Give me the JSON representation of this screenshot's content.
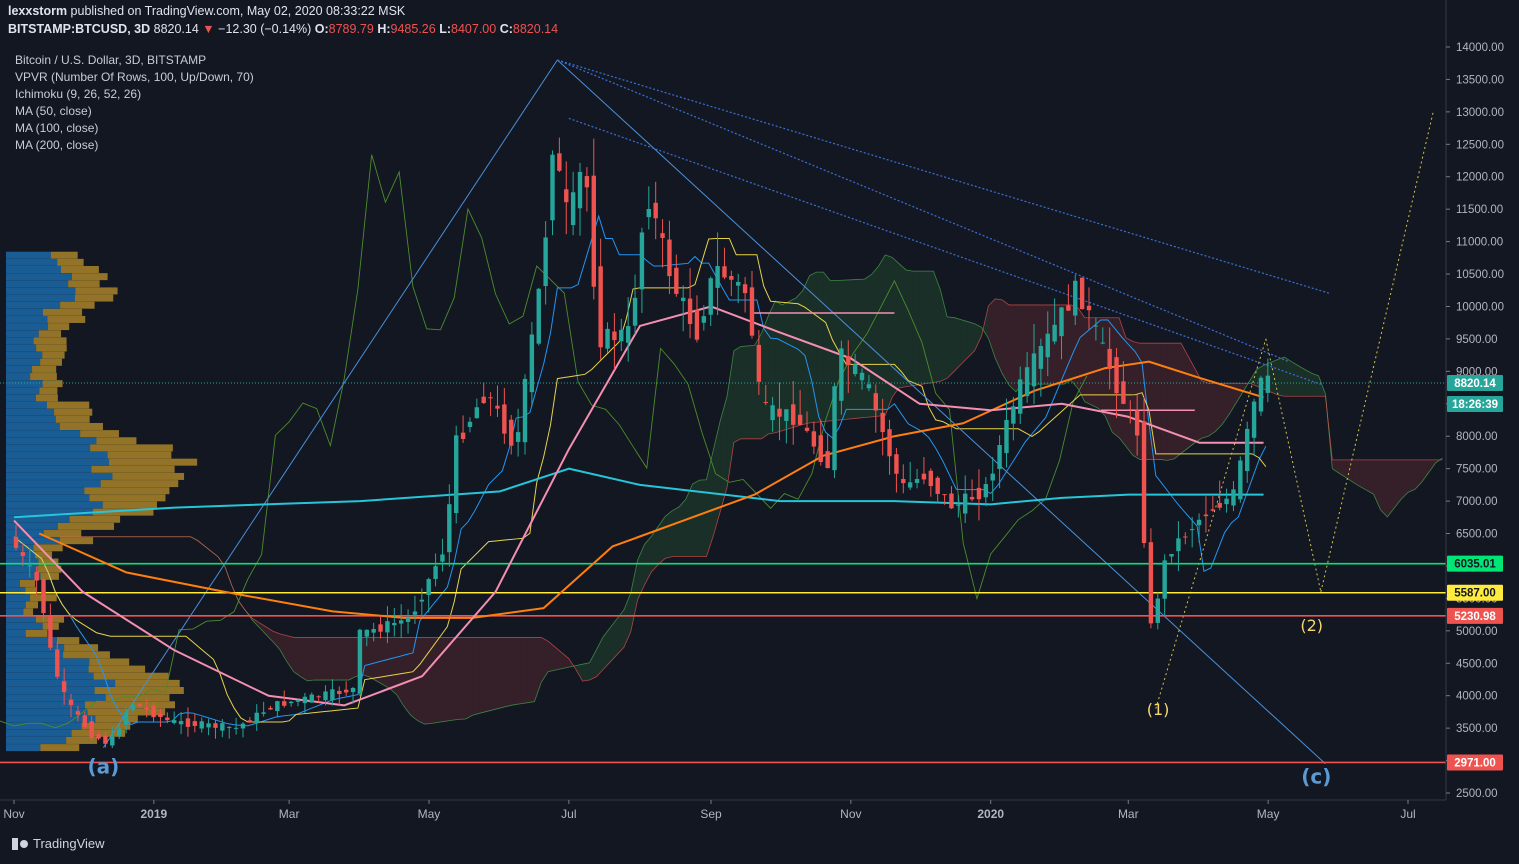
{
  "header": {
    "author": "lexxstorm",
    "published_text": "published on TradingView.com, May 02, 2020 08:33:22 MSK",
    "symbol": "BITSTAMP:BTCUSD, 3D",
    "last": "8820.14",
    "change": "−12.30 (−0.14%)",
    "open_label": "O:",
    "open": "8789.79",
    "high_label": "H:",
    "high": "9485.26",
    "low_label": "L:",
    "low": "8407.00",
    "close_label": "C:",
    "close": "8820.14"
  },
  "indicators": [
    "Bitcoin / U.S. Dollar, 3D, BITSTAMP",
    "VPVR (Number Of Rows, 100, Up/Down, 70)",
    "Ichimoku (9, 26, 52, 26)",
    "MA (50, close)",
    "MA (100, close)",
    "MA (200, close)"
  ],
  "brand": "TradingView",
  "colors": {
    "background": "#131722",
    "axis_text": "#b2b5be",
    "up": "#26a69a",
    "down": "#ef5350",
    "ma50": "#f48fb1",
    "ma100": "#ff7f0e",
    "ma200": "#26c6da",
    "support_green": "#00e676",
    "support_yellow": "#ffeb3b",
    "support_red": "#ef5350",
    "wave_label": "#5b9bd5",
    "wave_label_yellow": "#f5d76e"
  },
  "chart_data": {
    "type": "candlestick",
    "title": "Bitcoin / U.S. Dollar, 3D, BITSTAMP",
    "ylim": [
      2400,
      14100
    ],
    "y_ticks": [
      2500,
      3000,
      3500,
      4000,
      4500,
      5000,
      5500,
      6000,
      6500,
      7000,
      7500,
      8000,
      8500,
      9000,
      9500,
      10000,
      10500,
      11000,
      11500,
      12000,
      12500,
      13000,
      13500,
      14000
    ],
    "x_axis_labels": [
      "Nov",
      "2019",
      "Mar",
      "May",
      "Jul",
      "Sep",
      "Nov",
      "2020",
      "Mar",
      "May",
      "Jul"
    ],
    "x_axis_dates": [
      "2018-11-01",
      "2019-01-01",
      "2019-03-01",
      "2019-05-01",
      "2019-07-01",
      "2019-09-01",
      "2019-11-01",
      "2020-01-01",
      "2020-03-01",
      "2020-05-01",
      "2020-07-01"
    ],
    "price_path": [
      [
        "2018-11-01",
        6450
      ],
      [
        "2018-11-14",
        5700
      ],
      [
        "2018-11-20",
        4500
      ],
      [
        "2018-11-26",
        3900
      ],
      [
        "2018-12-07",
        3400
      ],
      [
        "2018-12-15",
        3250
      ],
      [
        "2018-12-24",
        3900
      ],
      [
        "2019-01-10",
        3600
      ],
      [
        "2019-02-08",
        3500
      ],
      [
        "2019-02-24",
        3850
      ],
      [
        "2019-03-31",
        4100
      ],
      [
        "2019-04-03",
        4950
      ],
      [
        "2019-04-25",
        5200
      ],
      [
        "2019-05-10",
        6300
      ],
      [
        "2019-05-15",
        7900
      ],
      [
        "2019-05-28",
        8700
      ],
      [
        "2019-06-10",
        7800
      ],
      [
        "2019-06-22",
        10700
      ],
      [
        "2019-06-26",
        12500
      ],
      [
        "2019-07-03",
        11300
      ],
      [
        "2019-07-10",
        12300
      ],
      [
        "2019-07-16",
        9500
      ],
      [
        "2019-07-30",
        9600
      ],
      [
        "2019-08-06",
        11800
      ],
      [
        "2019-08-18",
        10300
      ],
      [
        "2019-08-28",
        9600
      ],
      [
        "2019-09-05",
        10600
      ],
      [
        "2019-09-19",
        10200
      ],
      [
        "2019-09-25",
        8400
      ],
      [
        "2019-10-10",
        8300
      ],
      [
        "2019-10-25",
        7500
      ],
      [
        "2019-10-28",
        9300
      ],
      [
        "2019-11-10",
        8800
      ],
      [
        "2019-11-25",
        7200
      ],
      [
        "2019-12-05",
        7400
      ],
      [
        "2019-12-18",
        6900
      ],
      [
        "2020-01-01",
        7200
      ],
      [
        "2020-01-15",
        8700
      ],
      [
        "2020-02-10",
        10300
      ],
      [
        "2020-02-28",
        8700
      ],
      [
        "2020-03-08",
        8000
      ],
      [
        "2020-03-12",
        4900
      ],
      [
        "2020-03-20",
        6200
      ],
      [
        "2020-04-05",
        6800
      ],
      [
        "2020-04-18",
        7100
      ],
      [
        "2020-04-29",
        8800
      ],
      [
        "2020-05-01",
        8820
      ]
    ],
    "ma50": [
      [
        "2018-11-01",
        6700
      ],
      [
        "2018-12-01",
        5600
      ],
      [
        "2019-01-10",
        4700
      ],
      [
        "2019-02-20",
        4000
      ],
      [
        "2019-03-25",
        3850
      ],
      [
        "2019-04-28",
        4300
      ],
      [
        "2019-05-30",
        5600
      ],
      [
        "2019-07-01",
        7800
      ],
      [
        "2019-08-01",
        9700
      ],
      [
        "2019-09-01",
        10000
      ],
      [
        "2019-10-01",
        9600
      ],
      [
        "2019-11-01",
        9200
      ],
      [
        "2019-12-01",
        8500
      ],
      [
        "2020-01-01",
        8400
      ],
      [
        "2020-02-01",
        8500
      ],
      [
        "2020-03-01",
        8300
      ],
      [
        "2020-04-01",
        7900
      ],
      [
        "2020-04-29",
        7900
      ]
    ],
    "ma100": [
      [
        "2018-11-12",
        6500
      ],
      [
        "2018-12-20",
        5900
      ],
      [
        "2019-02-01",
        5600
      ],
      [
        "2019-03-20",
        5300
      ],
      [
        "2019-04-20",
        5200
      ],
      [
        "2019-05-20",
        5200
      ],
      [
        "2019-06-20",
        5350
      ],
      [
        "2019-07-20",
        6300
      ],
      [
        "2019-08-20",
        6700
      ],
      [
        "2019-09-20",
        7100
      ],
      [
        "2019-10-20",
        7700
      ],
      [
        "2019-11-20",
        8000
      ],
      [
        "2019-12-20",
        8200
      ],
      [
        "2020-01-20",
        8700
      ],
      [
        "2020-02-20",
        9050
      ],
      [
        "2020-03-10",
        9150
      ],
      [
        "2020-04-01",
        8900
      ],
      [
        "2020-04-29",
        8600
      ]
    ],
    "ma200": [
      [
        "2018-11-01",
        6750
      ],
      [
        "2019-01-10",
        6900
      ],
      [
        "2019-04-01",
        7000
      ],
      [
        "2019-06-01",
        7150
      ],
      [
        "2019-07-01",
        7500
      ],
      [
        "2019-08-01",
        7250
      ],
      [
        "2019-10-01",
        7000
      ],
      [
        "2019-11-20",
        7000
      ],
      [
        "2020-01-01",
        6950
      ],
      [
        "2020-02-01",
        7050
      ],
      [
        "2020-03-01",
        7100
      ],
      [
        "2020-04-29",
        7100
      ]
    ],
    "horizontal_levels": [
      {
        "price": 6035.01,
        "label": "6035.01",
        "color": "#00e676"
      },
      {
        "price": 5587.0,
        "label": "5587.00",
        "color": "#ffeb3b"
      },
      {
        "price": 5230.98,
        "label": "5230.98",
        "color": "#ef5350"
      },
      {
        "price": 2971.0,
        "label": "2971.00",
        "color": "#ef5350"
      }
    ],
    "current_price": {
      "price": 8820.14,
      "label": "8820.14",
      "countdown": "18:26:39"
    },
    "wave_labels": [
      {
        "text": "(a)",
        "date": "2018-12-10",
        "price": 2800,
        "color": "#5b9bd5"
      },
      {
        "text": "(c)",
        "date": "2020-05-22",
        "price": 2650,
        "color": "#5b9bd5"
      },
      {
        "text": "(1)",
        "date": "2020-03-14",
        "price": 3700,
        "color": "#f5d76e"
      },
      {
        "text": "(2)",
        "date": "2020-05-20",
        "price": 5000,
        "color": "#f5d76e"
      }
    ]
  }
}
